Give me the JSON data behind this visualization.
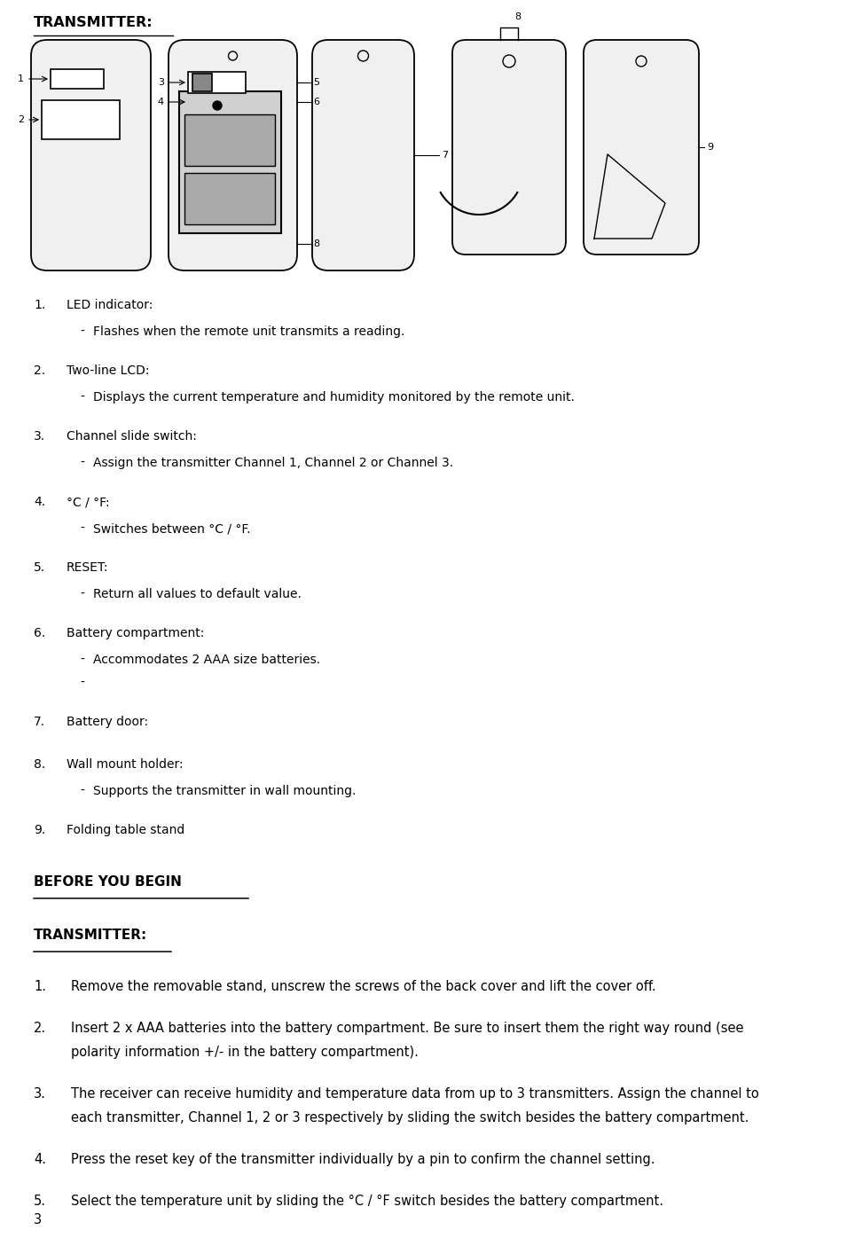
{
  "page_number": "3",
  "title": "TRANSMITTER:",
  "before_you_begin": "BEFORE YOU BEGIN",
  "transmitter_section2": "TRANSMITTER:",
  "items": [
    {
      "num": "1.",
      "label": "LED indicator:",
      "bullets": [
        "Flashes when the remote unit transmits a reading."
      ]
    },
    {
      "num": "2.",
      "label": "Two-line LCD:",
      "bullets": [
        "Displays the current temperature and humidity monitored by the remote unit."
      ]
    },
    {
      "num": "3.",
      "label": "Channel slide switch:",
      "bullets": [
        "Assign the transmitter Channel 1, Channel 2 or Channel 3."
      ]
    },
    {
      "num": "4.",
      "label": "°C / °F:",
      "bullets": [
        "Switches between °C / °F."
      ]
    },
    {
      "num": "5.",
      "label": "RESET:",
      "bullets": [
        "Return all values to default value."
      ]
    },
    {
      "num": "6.",
      "label": "Battery compartment:",
      "bullets": [
        "Accommodates 2 AAA size batteries.",
        "-"
      ]
    },
    {
      "num": "7.",
      "label": "Battery door:",
      "bullets": []
    },
    {
      "num": "8.",
      "label": "Wall mount holder:",
      "bullets": [
        "Supports the transmitter in wall mounting."
      ]
    },
    {
      "num": "9.",
      "label": "Folding table stand",
      "bullets": []
    }
  ],
  "steps": [
    "Remove the removable stand, unscrew the screws of the back cover and lift the cover off.",
    "Insert 2 x AAA batteries into the battery compartment. Be sure to insert them the right way round (see\npolarity information +/- in the battery compartment).",
    "The receiver can receive humidity and temperature data from up to 3 transmitters. Assign the channel to\neach transmitter, Channel 1, 2 or 3 respectively by sliding the switch besides the battery compartment.",
    "Press the reset key of the transmitter individually by a pin to confirm the channel setting.",
    "Select the temperature unit by sliding the °C / °F switch besides the battery compartment."
  ],
  "bg_color": "#ffffff",
  "text_color": "#000000",
  "fig_width": 9.55,
  "fig_height": 14.05
}
